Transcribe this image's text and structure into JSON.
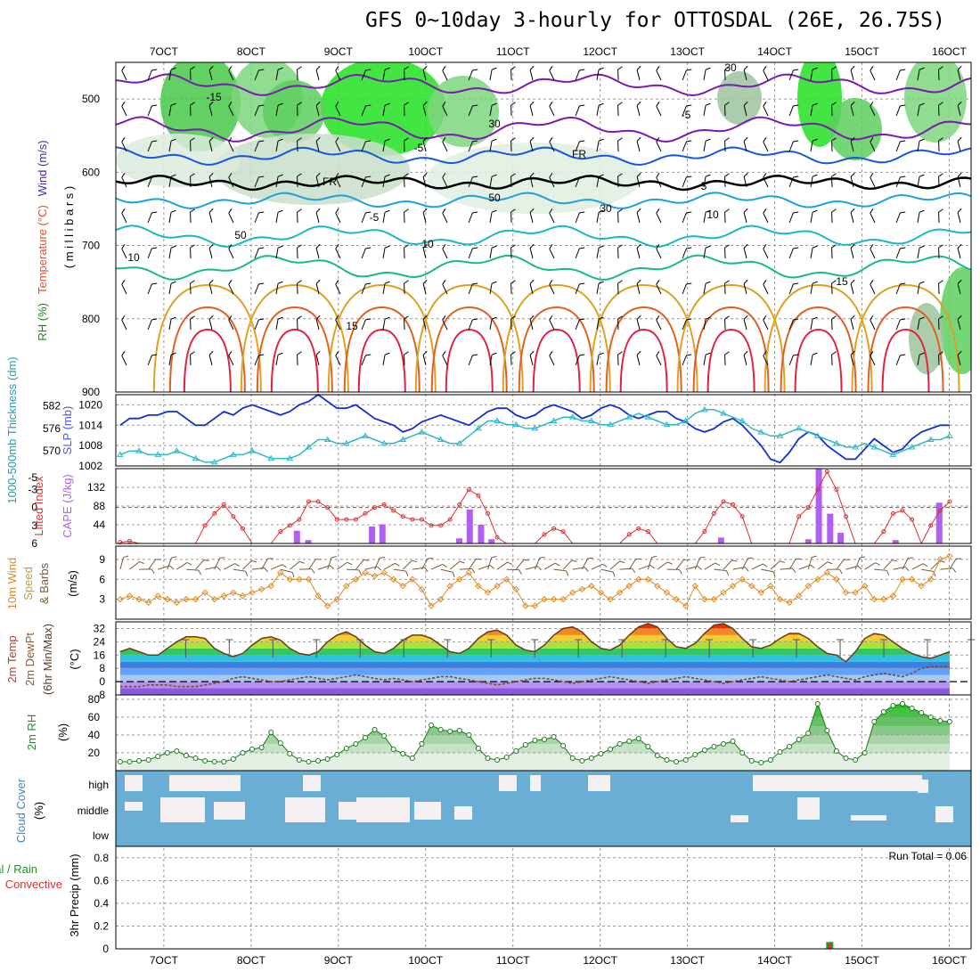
{
  "title": "GFS 0~10day 3-hourly for OTTOSDAL (26E, 26.75S)",
  "x_ticks": [
    "7OCT",
    "8OCT",
    "9OCT",
    "10OCT",
    "11OCT",
    "12OCT",
    "13OCT",
    "14OCT",
    "15OCT",
    "16OCT"
  ],
  "colors": {
    "blue_line": "#1030d0",
    "cyan_line": "#30b8c8",
    "lifted": "#e03030",
    "cape": "#b060f0",
    "wind_speed": "#e08a20",
    "rh_green": "#3cb03c",
    "cloud": "#6aaed6",
    "cloud_clear": "#f4f0f4"
  },
  "chart_data": [
    {
      "name": "upper-air",
      "type": "contour",
      "ylabel_parts": [
        "RH (%)",
        "Temperature (°C)",
        "Wind (m/s)"
      ],
      "yunits": "( m i l l i b a r s )",
      "y_ticks": [
        "500",
        "600",
        "700",
        "800",
        "900"
      ],
      "ylim": [
        900,
        450
      ],
      "contour_labels": [
        "-15",
        "-5",
        "-5",
        "FR",
        "FR",
        "5",
        "-5",
        "10",
        "10",
        "10",
        "15",
        "15",
        "30",
        "30",
        "50",
        "50",
        "30"
      ]
    },
    {
      "name": "thickness-slp",
      "type": "line",
      "ylabel_left": "1000-500mb Thickness (dm)",
      "ylabel_right": "SLP (mb)",
      "left_ticks": [
        "582",
        "576",
        "570"
      ],
      "right_ticks": [
        "1020",
        "1014",
        "1008",
        "1002"
      ],
      "series": [
        {
          "name": "SLP",
          "ylim": [
            1002,
            1023
          ],
          "values": [
            1014,
            1016,
            1016,
            1017,
            1017,
            1018,
            1018,
            1016,
            1014,
            1014,
            1016,
            1018,
            1017,
            1019,
            1020,
            1019,
            1018,
            1017,
            1018,
            1020,
            1021,
            1023,
            1021,
            1019,
            1019,
            1020,
            1018,
            1016,
            1015,
            1014,
            1012,
            1013,
            1015,
            1016,
            1017,
            1016,
            1015,
            1014,
            1016,
            1018,
            1019,
            1019,
            1017,
            1016,
            1017,
            1019,
            1020,
            1019,
            1018,
            1016,
            1017,
            1019,
            1020,
            1019,
            1017,
            1016,
            1017,
            1018,
            1018,
            1016,
            1015,
            1013,
            1012,
            1013,
            1015,
            1016,
            1014,
            1011,
            1008,
            1004,
            1003,
            1006,
            1010,
            1012,
            1011,
            1008,
            1006,
            1004,
            1004,
            1007,
            1010,
            1008,
            1006,
            1007,
            1010,
            1012,
            1013,
            1014,
            1014
          ]
        },
        {
          "name": "Thickness",
          "ylim": [
            566,
            585
          ],
          "values": [
            569,
            570,
            570,
            569,
            569,
            569,
            570,
            569,
            568,
            567,
            567,
            568,
            569,
            569,
            570,
            569,
            568,
            568,
            568,
            569,
            571,
            573,
            573,
            572,
            572,
            573,
            574,
            573,
            572,
            572,
            573,
            574,
            575,
            574,
            573,
            572,
            572,
            574,
            576,
            578,
            578,
            577,
            577,
            576,
            576,
            577,
            578,
            579,
            579,
            578,
            578,
            577,
            577,
            578,
            579,
            580,
            579,
            578,
            577,
            577,
            578,
            580,
            581,
            581,
            580,
            579,
            578,
            576,
            575,
            574,
            574,
            575,
            576,
            575,
            574,
            573,
            572,
            571,
            571,
            572,
            571,
            570,
            569,
            570,
            571,
            572,
            573,
            573,
            574
          ]
        }
      ]
    },
    {
      "name": "instability",
      "type": "line+bar",
      "ylabel_left": "Lifted Index",
      "ylabel_right": "CAPE (J/kg)",
      "left_ticks": [
        "-5",
        "-3",
        "0",
        "3",
        "6"
      ],
      "right_ticks": [
        "132",
        "88",
        "44"
      ],
      "lifted_index": [
        5.8,
        5.6,
        6,
        6,
        6,
        6,
        6,
        6,
        6,
        3,
        1,
        -0.5,
        1.5,
        3.5,
        6,
        6,
        6,
        4,
        3,
        2,
        -1,
        -1,
        0,
        2,
        2,
        2,
        1,
        0,
        -0.5,
        0.5,
        1.5,
        2,
        2,
        3,
        3,
        2,
        -0.5,
        -3,
        -2,
        1,
        5,
        6,
        6,
        6,
        6,
        4.5,
        3.5,
        4,
        6,
        6,
        6,
        6,
        6,
        6,
        4.5,
        3.5,
        4,
        6,
        6,
        6,
        6,
        6,
        4,
        1,
        -1,
        -0.5,
        1.5,
        6,
        6,
        6,
        6,
        6,
        1.5,
        0,
        -3,
        -6,
        -3,
        1.5,
        6,
        6,
        6,
        4,
        1,
        0.5,
        2,
        6,
        3,
        0.5,
        -1
      ],
      "cape_bars": [
        {
          "day": 8.52,
          "v": 30
        },
        {
          "day": 8.65,
          "v": 8
        },
        {
          "day": 9.38,
          "v": 40
        },
        {
          "day": 9.5,
          "v": 45
        },
        {
          "day": 10.38,
          "v": 12
        },
        {
          "day": 10.5,
          "v": 80
        },
        {
          "day": 10.63,
          "v": 44
        },
        {
          "day": 10.75,
          "v": 10
        },
        {
          "day": 13.38,
          "v": 14
        },
        {
          "day": 14.38,
          "v": 10
        },
        {
          "day": 14.5,
          "v": 176
        },
        {
          "day": 14.63,
          "v": 70
        },
        {
          "day": 14.75,
          "v": 25
        },
        {
          "day": 15.38,
          "v": 8
        },
        {
          "day": 15.88,
          "v": 96
        }
      ]
    },
    {
      "name": "wind",
      "type": "line",
      "ylabel": [
        "10m Wind",
        "Speed",
        "& Barbs"
      ],
      "yunits": "(m/s)",
      "y_ticks": [
        "9",
        "6",
        "3"
      ],
      "values": [
        3,
        3.5,
        3,
        2.5,
        3.5,
        3,
        2.5,
        3,
        3,
        4,
        3,
        3.5,
        4,
        3.5,
        4,
        4.5,
        5,
        7,
        6,
        6,
        6,
        3.5,
        2,
        3,
        5,
        6,
        7,
        6.5,
        7,
        6,
        5,
        6,
        4.5,
        2,
        3,
        5,
        6,
        7,
        5,
        4,
        5,
        6,
        4.5,
        2,
        2,
        3,
        3,
        3,
        4,
        4.5,
        5,
        4,
        3,
        4,
        5,
        6,
        6,
        5,
        4,
        3,
        2,
        5,
        3,
        3,
        4,
        5,
        6,
        5,
        4,
        5,
        3,
        2.5,
        3.5,
        5,
        6,
        7,
        6,
        4,
        4,
        5,
        3,
        3,
        3.5,
        6,
        6,
        5,
        6,
        9,
        9.5
      ]
    },
    {
      "name": "temperature",
      "type": "area",
      "ylabel": [
        "2m Temp",
        "2m DewPt",
        "(6hr Min/Max)"
      ],
      "yunits": "(°C)",
      "y_ticks": [
        "32",
        "24",
        "16",
        "8",
        "0",
        "-8"
      ],
      "ylim": [
        -8,
        36
      ],
      "temp": [
        18,
        20,
        18,
        16,
        16,
        20,
        24,
        27,
        27,
        26,
        20,
        17,
        15,
        17,
        22,
        26,
        27,
        25,
        20,
        17,
        16,
        18,
        24,
        28,
        30,
        27,
        22,
        18,
        17,
        20,
        25,
        28,
        28,
        26,
        22,
        18,
        17,
        20,
        26,
        30,
        31,
        28,
        22,
        19,
        18,
        22,
        28,
        32,
        33,
        30,
        24,
        20,
        19,
        22,
        28,
        33,
        35,
        33,
        26,
        21,
        20,
        23,
        29,
        34,
        35,
        32,
        26,
        21,
        20,
        22,
        26,
        29,
        29,
        26,
        21,
        17,
        16,
        12,
        18,
        26,
        29,
        28,
        24,
        20,
        17,
        15,
        14,
        16,
        18
      ],
      "dewpt": [
        -3,
        -3,
        -3,
        -2,
        -2,
        -2,
        -3,
        -3,
        -3,
        -2,
        -1,
        0,
        2,
        3,
        2,
        1,
        0,
        0,
        1,
        2,
        3,
        2,
        1,
        2,
        3,
        4,
        3,
        2,
        1,
        2,
        1,
        0,
        1,
        2,
        3,
        3,
        2,
        1,
        0,
        -1,
        -2,
        -1,
        0,
        1,
        2,
        2,
        1,
        0,
        -1,
        0,
        1,
        2,
        3,
        2,
        1,
        0,
        -1,
        0,
        1,
        2,
        3,
        2,
        1,
        0,
        -1,
        0,
        1,
        2,
        3,
        2,
        1,
        0,
        1,
        2,
        3,
        4,
        3,
        2,
        1,
        3,
        4,
        5,
        4,
        3,
        5,
        8,
        9,
        9,
        9
      ]
    },
    {
      "name": "humidity",
      "type": "area",
      "ylabel": "2m RH",
      "yunits": "(%)",
      "y_ticks": [
        "80",
        "60",
        "40",
        "20"
      ],
      "ylim": [
        0,
        85
      ],
      "values": [
        10,
        10,
        11,
        12,
        16,
        20,
        22,
        17,
        14,
        11,
        10,
        10,
        13,
        20,
        24,
        26,
        43,
        31,
        19,
        12,
        10,
        11,
        13,
        18,
        25,
        30,
        37,
        46,
        39,
        24,
        19,
        14,
        30,
        51,
        46,
        44,
        45,
        40,
        25,
        14,
        12,
        15,
        22,
        29,
        34,
        35,
        38,
        28,
        14,
        11,
        14,
        19,
        24,
        30,
        33,
        36,
        27,
        17,
        12,
        10,
        12,
        18,
        23,
        27,
        30,
        33,
        20,
        11,
        9,
        12,
        21,
        27,
        35,
        42,
        75,
        45,
        22,
        14,
        12,
        20,
        55,
        66,
        73,
        75,
        70,
        65,
        60,
        56,
        55
      ]
    },
    {
      "name": "clouds",
      "type": "heatmap",
      "ylabel": "Cloud Cover",
      "yunits": "(%)",
      "levels": [
        "high",
        "middle",
        "low"
      ]
    },
    {
      "name": "precip",
      "type": "bar",
      "ylabel": [
        "Total / Rain",
        "Convective"
      ],
      "ylabel_units": "3hr Precip (mm)",
      "y_ticks": [
        "0.8",
        "0.6",
        "0.4",
        "0.2",
        "0"
      ],
      "ylim": [
        0,
        0.9
      ],
      "run_total": "Run Total = 0.06",
      "bars": [
        {
          "day": 14.63,
          "total": 0.06,
          "convective": 0.04
        }
      ]
    }
  ]
}
